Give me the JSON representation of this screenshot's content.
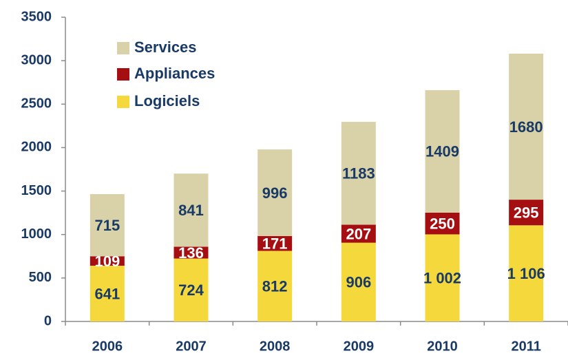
{
  "chart_data": {
    "type": "stacked_bar",
    "categories": [
      "2006",
      "2007",
      "2008",
      "2009",
      "2010",
      "2011"
    ],
    "series": [
      {
        "name": "Logiciels",
        "color": "#f5d93c",
        "values": [
          641,
          724,
          812,
          906,
          1002,
          1106
        ],
        "value_labels": [
          "641",
          "724",
          "812",
          "906",
          "1 002",
          "1 106"
        ]
      },
      {
        "name": "Appliances",
        "color": "#a50f12",
        "values": [
          109,
          136,
          171,
          207,
          250,
          295
        ]
      },
      {
        "name": "Services",
        "color": "#d9d2a9",
        "values": [
          715,
          841,
          996,
          1183,
          1409,
          1680
        ]
      }
    ],
    "ylim": [
      0,
      3500
    ],
    "yticks": [
      0,
      500,
      1000,
      1500,
      2000,
      2500,
      3000,
      3500
    ]
  }
}
